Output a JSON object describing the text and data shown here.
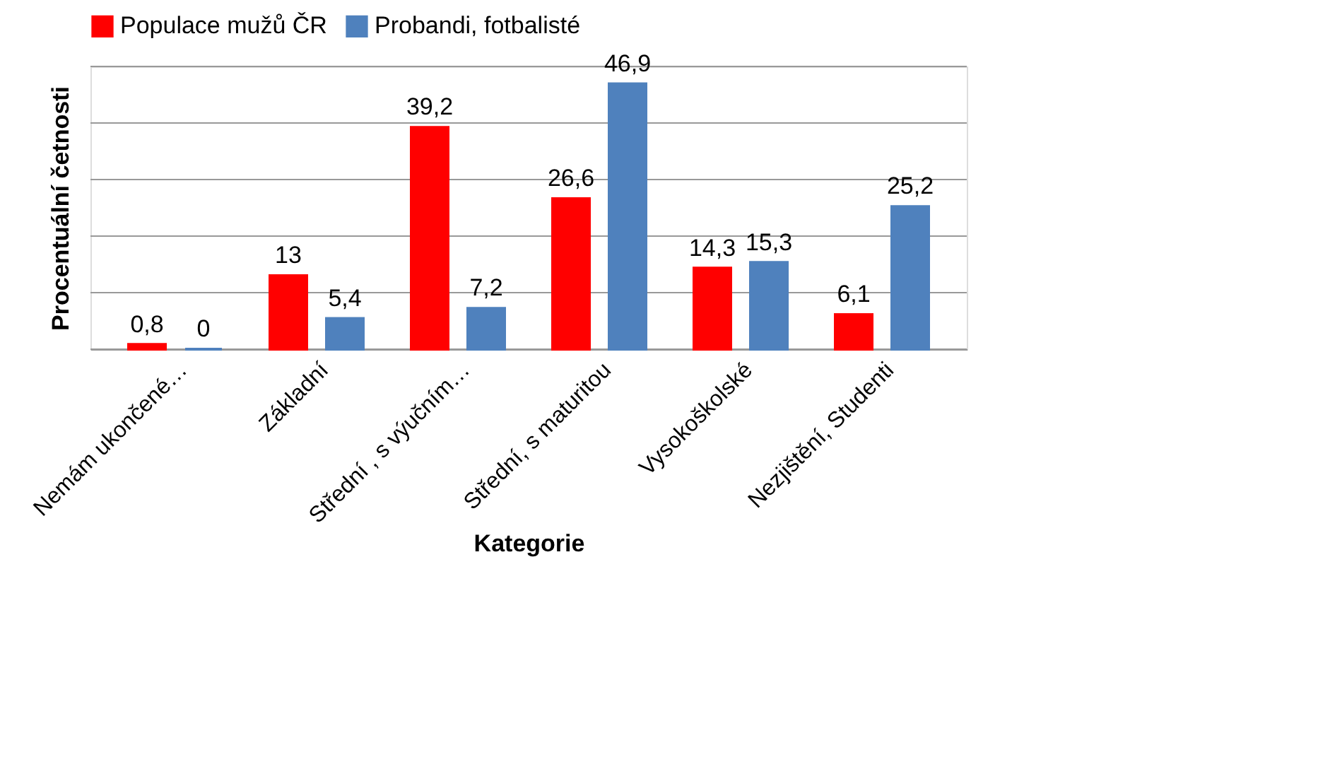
{
  "chart_data": {
    "type": "bar",
    "xlabel": "Kategorie",
    "ylabel": "Procentuální četnosti",
    "categories": [
      "Nemám ukončené…",
      "Základní",
      "Střední , s výučním…",
      "Střední, s maturitou",
      "Vysokoškolské",
      "Nezjištění, Studenti"
    ],
    "series": [
      {
        "name": "Populace mužů ČR",
        "color": "#ff0000",
        "values": [
          0.8,
          13,
          39.2,
          26.6,
          14.3,
          6.1
        ],
        "value_labels": [
          "0,8",
          "13",
          "39,2",
          "26,6",
          "14,3",
          "6,1"
        ]
      },
      {
        "name": "Probandi, fotbalisté",
        "color": "#4f81bd",
        "values": [
          0,
          5.4,
          7.2,
          46.9,
          15.3,
          25.2
        ],
        "value_labels": [
          "0",
          "5,4",
          "7,2",
          "46,9",
          "15,3",
          "25,2"
        ]
      }
    ],
    "ylim": [
      0,
      50
    ],
    "yticks": [
      {
        "value": 0,
        "label": null
      },
      {
        "value": 10,
        "label": null
      },
      {
        "value": 20,
        "label": null
      },
      {
        "value": 30,
        "label": null
      },
      {
        "value": 40,
        "label": null
      },
      {
        "value": 50,
        "label": null
      }
    ],
    "grid": "y",
    "legend": "top",
    "tick_labels": "x"
  }
}
